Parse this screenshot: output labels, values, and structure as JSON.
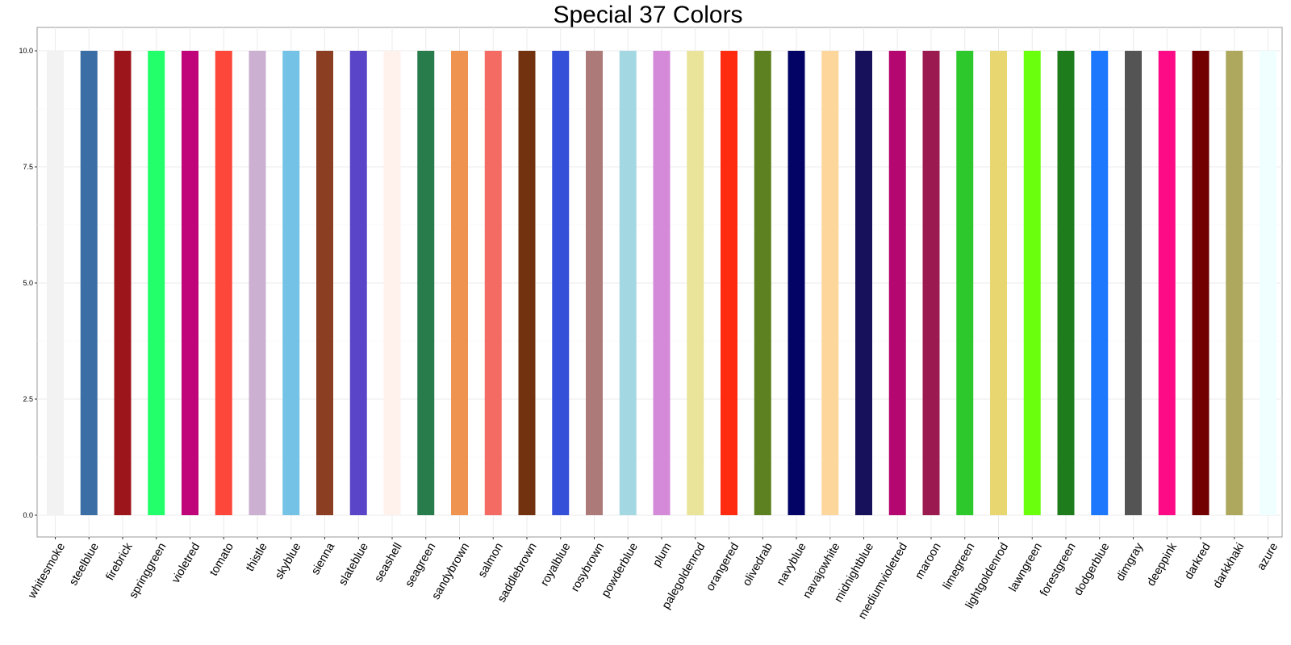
{
  "chart_data": {
    "type": "bar",
    "title": "Special 37 Colors",
    "xlabel": "",
    "ylabel": "",
    "ylim": [
      0,
      10.6
    ],
    "yticks": [
      "0.0",
      "2.5",
      "5.0",
      "7.5",
      "10.0"
    ],
    "grid": true,
    "legend": "none",
    "categories": [
      "whitesmoke",
      "steelblue",
      "firebrick",
      "springgreen",
      "violetred",
      "tomato",
      "thistle",
      "skyblue",
      "sienna",
      "slateblue",
      "seashell",
      "seagreen",
      "sandybrown",
      "salmon",
      "saddlebrown",
      "royalblue",
      "rosybrown",
      "powderblue",
      "plum",
      "palegoldenrod",
      "orangered",
      "olivedrab",
      "navyblue",
      "navajowhite",
      "midnightblue",
      "mediumvioletred",
      "maroon",
      "limegreen",
      "lightgoldenrod",
      "lawngreen",
      "forestgreen",
      "dodgerblue",
      "dimgray",
      "deeppink",
      "darkred",
      "darkkhaki",
      "azure"
    ],
    "values": [
      10,
      10,
      10,
      10,
      10,
      10,
      10,
      10,
      10,
      10,
      10,
      10,
      10,
      10,
      10,
      10,
      10,
      10,
      10,
      10,
      10,
      10,
      10,
      10,
      10,
      10,
      10,
      10,
      10,
      10,
      10,
      10,
      10,
      10,
      10,
      10,
      10
    ],
    "colors": [
      "#f2f2f2",
      "#3a6ea5",
      "#9b151b",
      "#22ff6a",
      "#c0047a",
      "#fd473a",
      "#cbb0d1",
      "#74c3e6",
      "#8c3e22",
      "#5a45c8",
      "#fff1ec",
      "#287c4c",
      "#ef9450",
      "#f36b62",
      "#72320f",
      "#3550d8",
      "#ad7a7a",
      "#a3d8e2",
      "#d48ad8",
      "#e9e49a",
      "#fe2b10",
      "#5d8121",
      "#030366",
      "#fdd69c",
      "#17105a",
      "#b4076f",
      "#9b1b50",
      "#2dc92c",
      "#e8d771",
      "#69ff0d",
      "#1f7c1d",
      "#1d78fe",
      "#545454",
      "#fd0a86",
      "#720001",
      "#ada85d",
      "#f0ffff"
    ]
  }
}
